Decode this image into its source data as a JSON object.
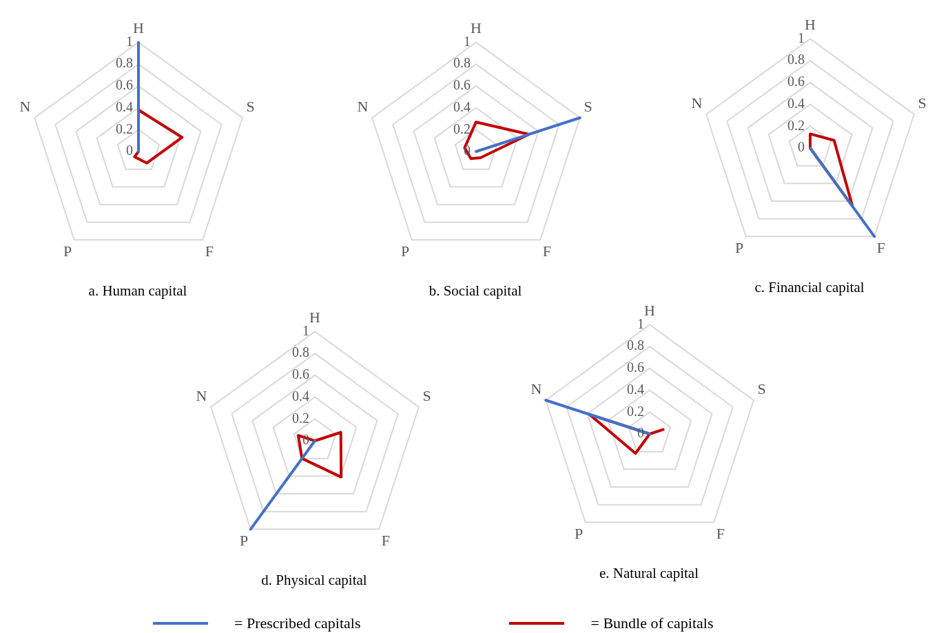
{
  "chart_data": [
    {
      "type": "radar",
      "title": "a. Human capital",
      "categories": [
        "H",
        "S",
        "F",
        "P",
        "N"
      ],
      "ylim": [
        0,
        1
      ],
      "yticks": [
        0,
        0.2,
        0.4,
        0.6,
        0.8,
        1
      ],
      "grid": true,
      "marker": "none",
      "legend": "bottom",
      "series": [
        {
          "name": "= Prescribed capitals",
          "color": "#4472c4",
          "values": [
            1,
            0,
            0,
            0,
            0
          ]
        },
        {
          "name": "= Bundle of capitals",
          "color": "#c00000",
          "values": [
            0.38,
            0.42,
            0.13,
            0.06,
            0
          ]
        }
      ]
    },
    {
      "type": "radar",
      "title": "b. Social capital",
      "categories": [
        "H",
        "S",
        "F",
        "P",
        "N"
      ],
      "ylim": [
        0,
        1
      ],
      "yticks": [
        0,
        0.2,
        0.4,
        0.6,
        0.8,
        1
      ],
      "grid": true,
      "marker": "none",
      "series": [
        {
          "color": "#4472c4",
          "values": [
            0,
            1,
            0,
            0,
            0
          ]
        },
        {
          "color": "#c00000",
          "values": [
            0.27,
            0.51,
            0.07,
            0.08,
            0.11
          ]
        }
      ]
    },
    {
      "type": "radar",
      "title": "c. Financial capital",
      "categories": [
        "H",
        "S",
        "F",
        "P",
        "N"
      ],
      "ylim": [
        0,
        1
      ],
      "yticks": [
        0,
        0.2,
        0.4,
        0.6,
        0.8,
        1
      ],
      "grid": true,
      "marker": "none",
      "series": [
        {
          "color": "#4472c4",
          "values": [
            0,
            0,
            1,
            0,
            0
          ]
        },
        {
          "color": "#c00000",
          "values": [
            0.13,
            0.23,
            0.66,
            0,
            0
          ]
        }
      ]
    },
    {
      "type": "radar",
      "title": "d. Physical capital",
      "categories": [
        "H",
        "S",
        "F",
        "P",
        "N"
      ],
      "ylim": [
        0,
        1
      ],
      "yticks": [
        0,
        0.2,
        0.4,
        0.6,
        0.8,
        1
      ],
      "grid": true,
      "marker": "none",
      "series": [
        {
          "color": "#4472c4",
          "values": [
            0,
            0,
            0,
            1,
            0
          ]
        },
        {
          "color": "#c00000",
          "values": [
            0,
            0.25,
            0.41,
            0.2,
            0.16
          ]
        }
      ]
    },
    {
      "type": "radar",
      "title": "e. Natural capital",
      "categories": [
        "H",
        "S",
        "F",
        "P",
        "N"
      ],
      "ylim": [
        0,
        1
      ],
      "yticks": [
        0,
        0.2,
        0.4,
        0.6,
        0.8,
        1
      ],
      "grid": true,
      "marker": "none",
      "series": [
        {
          "color": "#4472c4",
          "values": [
            0,
            0,
            0,
            0,
            1
          ]
        },
        {
          "color": "#c00000",
          "values": [
            0,
            0.13,
            0,
            0.22,
            0.58
          ]
        }
      ]
    }
  ]
}
